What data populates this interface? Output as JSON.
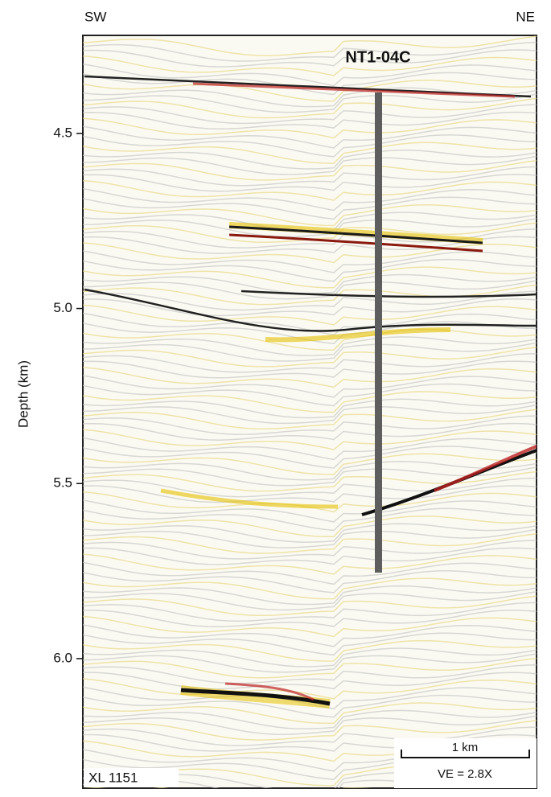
{
  "chart_data": {
    "type": "seismic-section",
    "left_label": "SW",
    "right_label": "NE",
    "title": "NT1-04C",
    "y_label": "Depth (km)",
    "ylim": [
      6.37,
      4.22
    ],
    "yticks": [
      4.5,
      {
        "value": 5,
        "label": "5.0"
      },
      5.5,
      {
        "value": 6,
        "label": "6.0"
      }
    ],
    "scale_bar_label": "1 km",
    "vertical_exaggeration": "VE = 2.8X",
    "line_label": "XL 1151"
  }
}
